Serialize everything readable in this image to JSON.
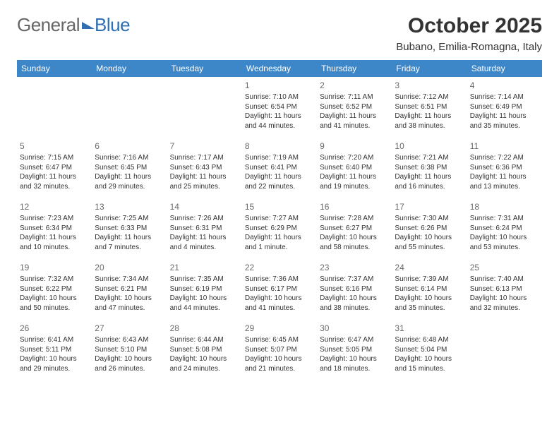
{
  "logo": {
    "text1": "General",
    "text2": "Blue"
  },
  "title": "October 2025",
  "location": "Bubano, Emilia-Romagna, Italy",
  "colors": {
    "header_bg": "#3d87c9",
    "header_text": "#ffffff",
    "page_bg": "#ffffff",
    "text": "#333333",
    "daynum": "#6a6a6a",
    "logo_gray": "#666666",
    "logo_blue": "#2f6fb0"
  },
  "typography": {
    "title_fontsize": 30,
    "location_fontsize": 15,
    "header_fontsize": 12,
    "cell_fontsize": 10,
    "daynum_fontsize": 12
  },
  "days_of_week": [
    "Sunday",
    "Monday",
    "Tuesday",
    "Wednesday",
    "Thursday",
    "Friday",
    "Saturday"
  ],
  "weeks": [
    [
      {
        "blank": true
      },
      {
        "blank": true
      },
      {
        "blank": true
      },
      {
        "num": "1",
        "sunrise": "Sunrise: 7:10 AM",
        "sunset": "Sunset: 6:54 PM",
        "daylight": "Daylight: 11 hours and 44 minutes."
      },
      {
        "num": "2",
        "sunrise": "Sunrise: 7:11 AM",
        "sunset": "Sunset: 6:52 PM",
        "daylight": "Daylight: 11 hours and 41 minutes."
      },
      {
        "num": "3",
        "sunrise": "Sunrise: 7:12 AM",
        "sunset": "Sunset: 6:51 PM",
        "daylight": "Daylight: 11 hours and 38 minutes."
      },
      {
        "num": "4",
        "sunrise": "Sunrise: 7:14 AM",
        "sunset": "Sunset: 6:49 PM",
        "daylight": "Daylight: 11 hours and 35 minutes."
      }
    ],
    [
      {
        "num": "5",
        "sunrise": "Sunrise: 7:15 AM",
        "sunset": "Sunset: 6:47 PM",
        "daylight": "Daylight: 11 hours and 32 minutes."
      },
      {
        "num": "6",
        "sunrise": "Sunrise: 7:16 AM",
        "sunset": "Sunset: 6:45 PM",
        "daylight": "Daylight: 11 hours and 29 minutes."
      },
      {
        "num": "7",
        "sunrise": "Sunrise: 7:17 AM",
        "sunset": "Sunset: 6:43 PM",
        "daylight": "Daylight: 11 hours and 25 minutes."
      },
      {
        "num": "8",
        "sunrise": "Sunrise: 7:19 AM",
        "sunset": "Sunset: 6:41 PM",
        "daylight": "Daylight: 11 hours and 22 minutes."
      },
      {
        "num": "9",
        "sunrise": "Sunrise: 7:20 AM",
        "sunset": "Sunset: 6:40 PM",
        "daylight": "Daylight: 11 hours and 19 minutes."
      },
      {
        "num": "10",
        "sunrise": "Sunrise: 7:21 AM",
        "sunset": "Sunset: 6:38 PM",
        "daylight": "Daylight: 11 hours and 16 minutes."
      },
      {
        "num": "11",
        "sunrise": "Sunrise: 7:22 AM",
        "sunset": "Sunset: 6:36 PM",
        "daylight": "Daylight: 11 hours and 13 minutes."
      }
    ],
    [
      {
        "num": "12",
        "sunrise": "Sunrise: 7:23 AM",
        "sunset": "Sunset: 6:34 PM",
        "daylight": "Daylight: 11 hours and 10 minutes."
      },
      {
        "num": "13",
        "sunrise": "Sunrise: 7:25 AM",
        "sunset": "Sunset: 6:33 PM",
        "daylight": "Daylight: 11 hours and 7 minutes."
      },
      {
        "num": "14",
        "sunrise": "Sunrise: 7:26 AM",
        "sunset": "Sunset: 6:31 PM",
        "daylight": "Daylight: 11 hours and 4 minutes."
      },
      {
        "num": "15",
        "sunrise": "Sunrise: 7:27 AM",
        "sunset": "Sunset: 6:29 PM",
        "daylight": "Daylight: 11 hours and 1 minute."
      },
      {
        "num": "16",
        "sunrise": "Sunrise: 7:28 AM",
        "sunset": "Sunset: 6:27 PM",
        "daylight": "Daylight: 10 hours and 58 minutes."
      },
      {
        "num": "17",
        "sunrise": "Sunrise: 7:30 AM",
        "sunset": "Sunset: 6:26 PM",
        "daylight": "Daylight: 10 hours and 55 minutes."
      },
      {
        "num": "18",
        "sunrise": "Sunrise: 7:31 AM",
        "sunset": "Sunset: 6:24 PM",
        "daylight": "Daylight: 10 hours and 53 minutes."
      }
    ],
    [
      {
        "num": "19",
        "sunrise": "Sunrise: 7:32 AM",
        "sunset": "Sunset: 6:22 PM",
        "daylight": "Daylight: 10 hours and 50 minutes."
      },
      {
        "num": "20",
        "sunrise": "Sunrise: 7:34 AM",
        "sunset": "Sunset: 6:21 PM",
        "daylight": "Daylight: 10 hours and 47 minutes."
      },
      {
        "num": "21",
        "sunrise": "Sunrise: 7:35 AM",
        "sunset": "Sunset: 6:19 PM",
        "daylight": "Daylight: 10 hours and 44 minutes."
      },
      {
        "num": "22",
        "sunrise": "Sunrise: 7:36 AM",
        "sunset": "Sunset: 6:17 PM",
        "daylight": "Daylight: 10 hours and 41 minutes."
      },
      {
        "num": "23",
        "sunrise": "Sunrise: 7:37 AM",
        "sunset": "Sunset: 6:16 PM",
        "daylight": "Daylight: 10 hours and 38 minutes."
      },
      {
        "num": "24",
        "sunrise": "Sunrise: 7:39 AM",
        "sunset": "Sunset: 6:14 PM",
        "daylight": "Daylight: 10 hours and 35 minutes."
      },
      {
        "num": "25",
        "sunrise": "Sunrise: 7:40 AM",
        "sunset": "Sunset: 6:13 PM",
        "daylight": "Daylight: 10 hours and 32 minutes."
      }
    ],
    [
      {
        "num": "26",
        "sunrise": "Sunrise: 6:41 AM",
        "sunset": "Sunset: 5:11 PM",
        "daylight": "Daylight: 10 hours and 29 minutes."
      },
      {
        "num": "27",
        "sunrise": "Sunrise: 6:43 AM",
        "sunset": "Sunset: 5:10 PM",
        "daylight": "Daylight: 10 hours and 26 minutes."
      },
      {
        "num": "28",
        "sunrise": "Sunrise: 6:44 AM",
        "sunset": "Sunset: 5:08 PM",
        "daylight": "Daylight: 10 hours and 24 minutes."
      },
      {
        "num": "29",
        "sunrise": "Sunrise: 6:45 AM",
        "sunset": "Sunset: 5:07 PM",
        "daylight": "Daylight: 10 hours and 21 minutes."
      },
      {
        "num": "30",
        "sunrise": "Sunrise: 6:47 AM",
        "sunset": "Sunset: 5:05 PM",
        "daylight": "Daylight: 10 hours and 18 minutes."
      },
      {
        "num": "31",
        "sunrise": "Sunrise: 6:48 AM",
        "sunset": "Sunset: 5:04 PM",
        "daylight": "Daylight: 10 hours and 15 minutes."
      },
      {
        "blank": true
      }
    ]
  ]
}
